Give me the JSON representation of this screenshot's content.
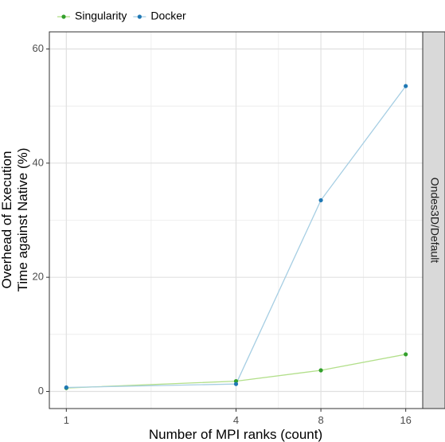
{
  "chart_data": {
    "type": "line",
    "x": [
      1,
      4,
      8,
      16
    ],
    "xscale": "log2",
    "xticks": [
      1,
      4,
      8,
      16
    ],
    "xtick_labels": [
      "1",
      "4",
      "8",
      "16"
    ],
    "yticks": [
      0,
      20,
      40,
      60
    ],
    "ytick_labels": [
      "0",
      "20",
      "40",
      "60"
    ],
    "ylim": [
      -3,
      63
    ],
    "xlabel": "Number of MPI ranks (count)",
    "ylabel_lines": [
      "Overhead of Execution",
      "Time against Native (%)"
    ],
    "facet_label": "Ondes3D/Default",
    "legend_position": "top-left",
    "grid": true,
    "series": [
      {
        "name": "Singularity",
        "color": "#33a02c",
        "line_color": "#b2df8a",
        "values": [
          0.6,
          1.8,
          3.7,
          6.5
        ]
      },
      {
        "name": "Docker",
        "color": "#1f78b4",
        "line_color": "#a6cee3",
        "values": [
          0.7,
          1.3,
          33.5,
          53.5
        ]
      }
    ]
  }
}
